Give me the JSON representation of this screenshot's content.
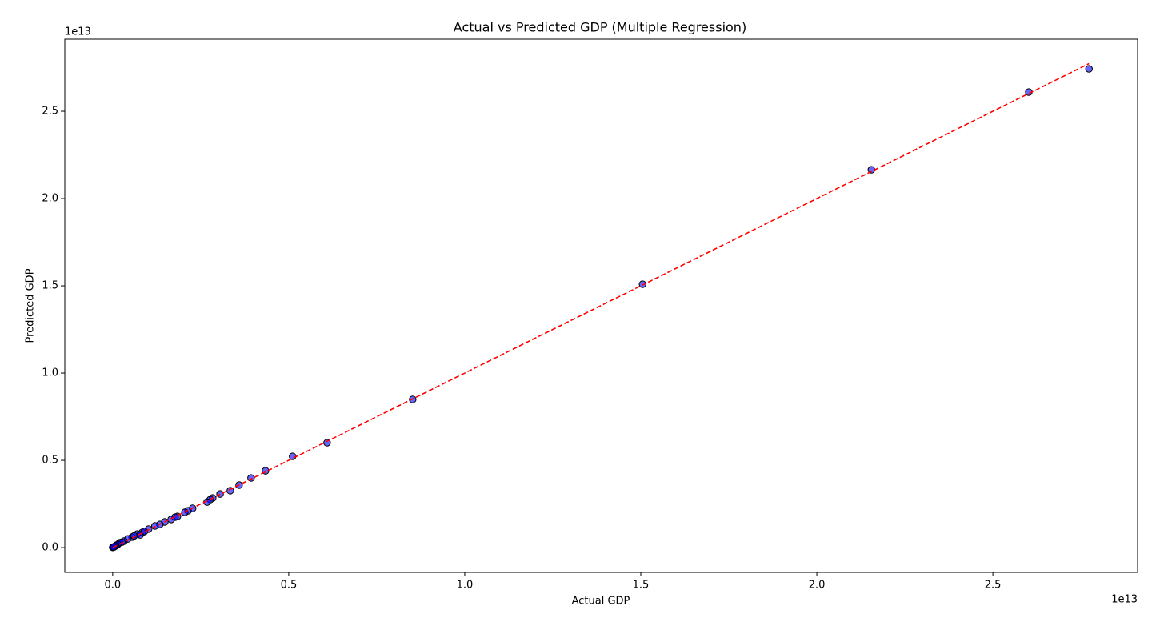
{
  "chart_data": {
    "type": "scatter",
    "title": "Actual vs Predicted GDP (Multiple Regression)",
    "x_label": "Actual GDP",
    "y_label": "Predicted GDP",
    "x_offset_label": "1e13",
    "y_offset_label": "1e13",
    "xlim": [
      -0.136,
      2.911
    ],
    "ylim": [
      -0.142,
      2.913
    ],
    "xticks": [
      {
        "value": 0,
        "label": "0.0"
      },
      0.5,
      {
        "value": 1,
        "label": "1.0"
      },
      1.5,
      {
        "value": 2,
        "label": "2.0"
      },
      2.5
    ],
    "yticks": [
      {
        "value": 0,
        "label": "0.0"
      },
      0.5,
      {
        "value": 1,
        "label": "1.0"
      },
      1.5,
      {
        "value": 2,
        "label": "2.0"
      },
      2.5
    ],
    "series": [
      {
        "color": "#0000ff",
        "edge_color": "#000000",
        "opacity": 0.6,
        "x": [
          2.773,
          2.602,
          2.155,
          1.505,
          0.852,
          0.609,
          0.511,
          0.434,
          0.393,
          0.359,
          0.334,
          0.305,
          0.284,
          0.277,
          0.268,
          0.227,
          0.214,
          0.205,
          0.184,
          0.177,
          0.166,
          0.148,
          0.134,
          0.12,
          0.102,
          0.084,
          0.07,
          0.055,
          0.043,
          0.032,
          0.02,
          0.011,
          0.005,
          0.001,
          0,
          0.061,
          0.078,
          0.09,
          0.026,
          0.015,
          0.008,
          0.003
        ],
        "y": [
          2.743,
          2.61,
          2.165,
          1.509,
          0.849,
          0.601,
          0.523,
          0.44,
          0.399,
          0.358,
          0.326,
          0.307,
          0.284,
          0.275,
          0.261,
          0.225,
          0.211,
          0.202,
          0.179,
          0.174,
          0.161,
          0.147,
          0.133,
          0.124,
          0.106,
          0.087,
          0.078,
          0.06,
          0.05,
          0.037,
          0.028,
          0.014,
          0.005,
          0.002,
          0.001,
          0.067,
          0.073,
          0.092,
          0.031,
          0.019,
          0.01,
          0.004
        ]
      }
    ],
    "reference_line": {
      "color": "#ff0000",
      "x": [
        0,
        2.773
      ],
      "y": [
        0,
        2.773
      ]
    }
  }
}
